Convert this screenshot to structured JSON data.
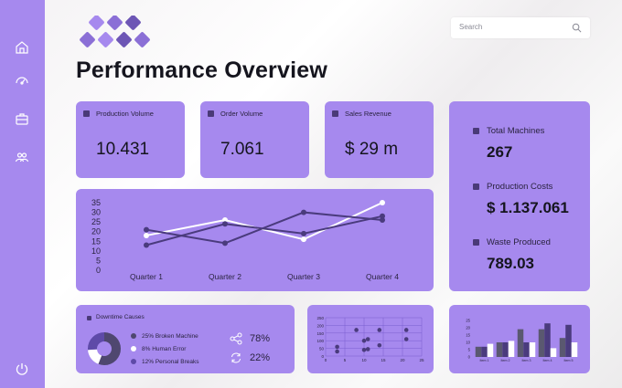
{
  "search": {
    "placeholder": "Search"
  },
  "title": "Performance Overview",
  "kpis": [
    {
      "label": "Production Volume",
      "value": "10.431"
    },
    {
      "label": "Order Volume",
      "value": "7.061"
    },
    {
      "label": "Sales Revenue",
      "value": "$ 29 m"
    }
  ],
  "side_stats": [
    {
      "label": "Total Machines",
      "value": "267"
    },
    {
      "label": "Production Costs",
      "value": "$ 1.137.061"
    },
    {
      "label": "Waste Produced",
      "value": "789.03"
    }
  ],
  "sidebar_icons": [
    "home-icon",
    "dashboard-gauge-icon",
    "briefcase-icon",
    "users-icon",
    "power-icon"
  ],
  "downtime": {
    "title": "Downtime Causes",
    "legend": [
      {
        "label": "25% Broken Machine",
        "color": "#4f4770"
      },
      {
        "label": "8% Human Error",
        "color": "#ffffff"
      },
      {
        "label": "12% Personal Breaks",
        "color": "#5e4aa8"
      }
    ],
    "stats": [
      {
        "icon": "share-icon",
        "value": "78%"
      },
      {
        "icon": "refresh-icon",
        "value": "22%"
      }
    ]
  },
  "colors": {
    "card": "#a689ee",
    "dark_series": "#4a3b7d",
    "light_series": "#ffffff",
    "gray_series": "#5a5870"
  },
  "chart_data": [
    {
      "type": "line",
      "categories": [
        "Quarter 1",
        "Quarter 2",
        "Quarter 3",
        "Quarter 4"
      ],
      "y_ticks": [
        0,
        5,
        10,
        15,
        20,
        25,
        30,
        35
      ],
      "ylim": [
        0,
        35
      ],
      "series": [
        {
          "color": "#ffffff",
          "values": [
            18,
            26,
            16,
            35
          ]
        },
        {
          "color": "#4a3b7d",
          "values": [
            21,
            14,
            30,
            26
          ]
        },
        {
          "color": "#4a3b7d",
          "values": [
            13,
            24,
            19,
            28
          ]
        }
      ]
    },
    {
      "type": "scatter",
      "x_ticks": [
        0,
        5,
        10,
        15,
        20,
        25
      ],
      "y_ticks": [
        0,
        50,
        100,
        150,
        200,
        250
      ],
      "xlim": [
        0,
        25
      ],
      "ylim": [
        0,
        250
      ],
      "points": [
        [
          3,
          60
        ],
        [
          3,
          30
        ],
        [
          8,
          170
        ],
        [
          10,
          100
        ],
        [
          11,
          110
        ],
        [
          10,
          40
        ],
        [
          11,
          45
        ],
        [
          14,
          70
        ],
        [
          14,
          170
        ],
        [
          21,
          170
        ],
        [
          21,
          110
        ]
      ]
    },
    {
      "type": "bar",
      "categories": [
        "Item 1",
        "Item 2",
        "Item 3",
        "Item 4",
        "Item 5"
      ],
      "y_ticks": [
        0,
        5,
        10,
        15,
        20,
        25
      ],
      "ylim": [
        0,
        25
      ],
      "series": [
        {
          "color": "#5a5870",
          "values": [
            7,
            10,
            19,
            19,
            13
          ]
        },
        {
          "color": "#4a3b7d",
          "values": [
            7,
            10,
            10,
            23,
            22
          ]
        },
        {
          "color": "#ffffff",
          "values": [
            9,
            11,
            10,
            6,
            10
          ]
        }
      ]
    },
    {
      "type": "pie",
      "title": "Downtime Causes",
      "labels": [
        "Broken Machine",
        "Human Error",
        "Personal Breaks"
      ],
      "values": [
        25,
        8,
        12
      ]
    }
  ]
}
